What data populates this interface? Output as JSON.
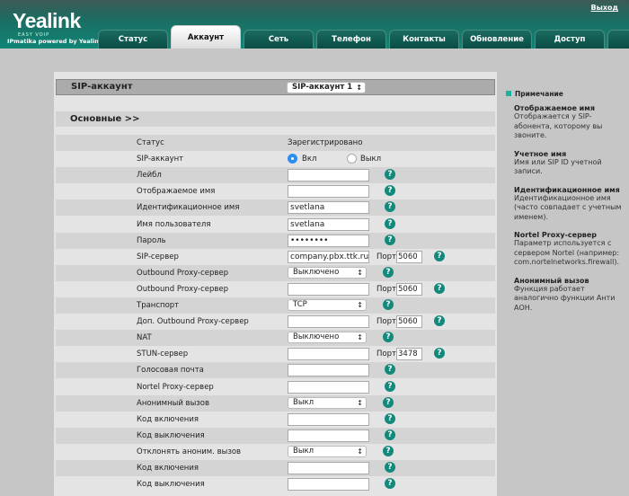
{
  "header": {
    "logo": "Yealink",
    "slogan": "EASY VOIP",
    "powered": "IPmatika powered by Yealink",
    "logout": "Выход",
    "tabs": [
      "Статус",
      "Аккаунт",
      "Сеть",
      "Телефон",
      "Контакты",
      "Обновление",
      "Доступ"
    ],
    "active_tab": "Аккаунт"
  },
  "account": {
    "label": "SIP-аккаунт",
    "selected": "SIP-аккаунт 1"
  },
  "section": "Основные >>",
  "port_label": "Порт",
  "rows": [
    {
      "label": "Статус",
      "type": "text",
      "value": "Зарегистрировано"
    },
    {
      "label": "SIP-аккаунт",
      "type": "radio",
      "on": "Вкл",
      "off": "Выкл",
      "selected": "Вкл"
    },
    {
      "label": "Лейбл",
      "type": "input",
      "value": ""
    },
    {
      "label": "Отображаемое имя",
      "type": "input",
      "value": ""
    },
    {
      "label": "Идентификационное имя",
      "type": "input",
      "value": "svetlana"
    },
    {
      "label": "Имя пользователя",
      "type": "input",
      "value": "svetlana"
    },
    {
      "label": "Пароль",
      "type": "input",
      "value": "••••••••"
    },
    {
      "label": "SIP-сервер",
      "type": "input",
      "value": "company.pbx.ttk.ru",
      "port": "5060"
    },
    {
      "label": "Outbound Proxy-сервер",
      "type": "select",
      "value": "Выключено"
    },
    {
      "label": "Outbound Proxy-сервер",
      "type": "input",
      "value": "",
      "port": "5060"
    },
    {
      "label": "Транспорт",
      "type": "select",
      "value": "TCP"
    },
    {
      "label": "Доп. Outbound Proxy-сервер",
      "type": "input",
      "value": "",
      "port": "5060"
    },
    {
      "label": "NAT",
      "type": "select",
      "value": "Выключено"
    },
    {
      "label": "STUN-сервер",
      "type": "input",
      "value": "",
      "port": "3478"
    },
    {
      "label": "Голосовая почта",
      "type": "input",
      "value": ""
    },
    {
      "label": "Nortel Proxy-сервер",
      "type": "input",
      "value": ""
    },
    {
      "label": "Анонимный вызов",
      "type": "select",
      "value": "Выкл"
    },
    {
      "label": "Код включения",
      "type": "input",
      "value": ""
    },
    {
      "label": "Код выключения",
      "type": "input",
      "value": ""
    },
    {
      "label": "Отклонять аноним. вызов",
      "type": "select",
      "value": "Выкл"
    },
    {
      "label": "Код включения",
      "type": "input",
      "value": ""
    },
    {
      "label": "Код выключения",
      "type": "input",
      "value": ""
    }
  ],
  "notes": {
    "title": "Примечание",
    "items": [
      {
        "heading": "Отображаемое имя",
        "text": "Отображается у SIP-абонента, которому вы звоните."
      },
      {
        "heading": "Учетное имя",
        "text": "Имя или SIP ID учетной записи."
      },
      {
        "heading": "Идентификационное имя",
        "text": "Идентификационное имя (часто совпадает с учетным именем)."
      },
      {
        "heading": "Nortel Proxy-сервер",
        "text": "Параметр используется с сервером Nortel (например: com.nortelnetworks.firewall)."
      },
      {
        "heading": "Анонимный вызов",
        "text": "Функция работает аналогично функции Анти АОН."
      }
    ]
  },
  "colors": {
    "header": "#0f8576",
    "help": "#13897c",
    "panel": "#e4e4e4"
  }
}
